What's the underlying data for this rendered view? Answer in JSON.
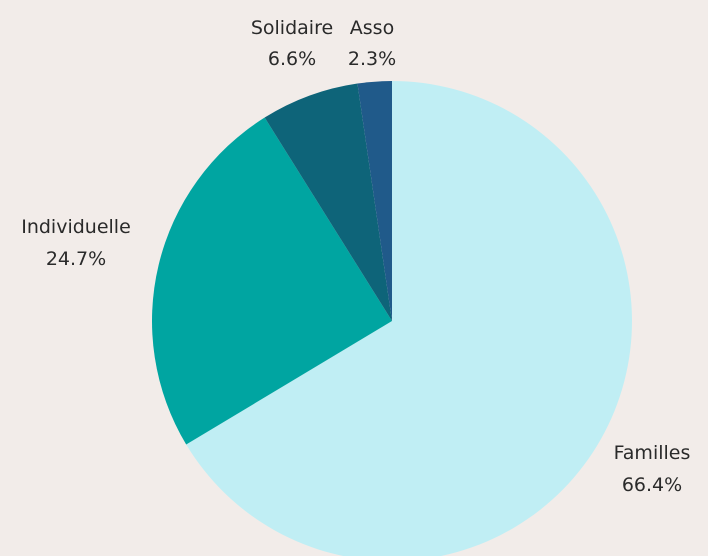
{
  "chart_data": {
    "type": "pie",
    "title": "",
    "start": "12 o'clock",
    "direction": "clockwise",
    "legend": "none",
    "slices": [
      {
        "name": "Familles",
        "value": 66.4,
        "label": "66.4%",
        "color": "#c0eef4"
      },
      {
        "name": "Individuelle",
        "value": 24.7,
        "label": "24.7%",
        "color": "#00a5a1"
      },
      {
        "name": "Solidaire",
        "value": 6.6,
        "label": "6.6%",
        "color": "#0e6479"
      },
      {
        "name": "Asso",
        "value": 2.3,
        "label": "2.3%",
        "color": "#205a8a"
      }
    ]
  },
  "colors": {
    "background": "#f2ece9",
    "label_text": "#2a2a2a"
  }
}
